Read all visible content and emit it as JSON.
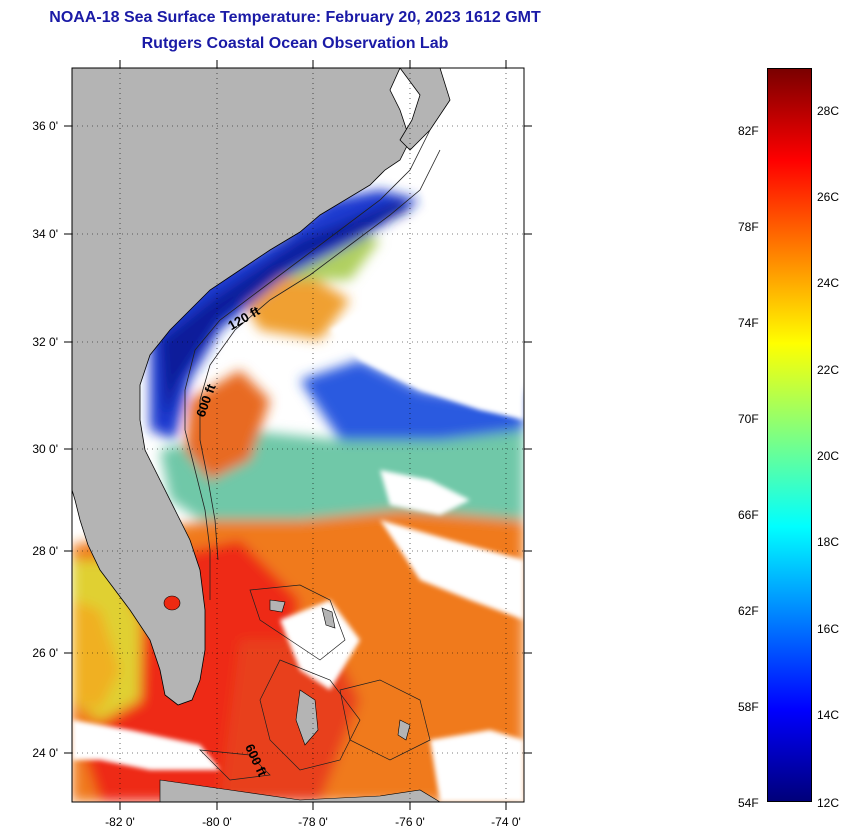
{
  "title": {
    "line1": "NOAA-18 Sea Surface Temperature:  February 20, 2023 1612 GMT",
    "line2": "Rutgers Coastal Ocean Observation Lab"
  },
  "map": {
    "lat_labels": [
      "36 0'",
      "34 0'",
      "32 0'",
      "30 0'",
      "28 0'",
      "26 0'",
      "24 0'"
    ],
    "lon_labels": [
      "-82 0'",
      "-80 0'",
      "-78 0'",
      "-76 0'",
      "-74 0'"
    ],
    "contour_labels": [
      "120 ft",
      "600 ft",
      "600 ft"
    ],
    "colors": {
      "land": "#b4b4b4",
      "cloud": "#ffffff",
      "warm": "#ee2a12",
      "orange": "#f07a1a",
      "yellow": "#e8e030",
      "cyan": "#40c8c8",
      "blue": "#1a3ad0",
      "darkblue": "#0a1a9a"
    }
  },
  "colorbar": {
    "fahrenheit_labels": [
      "82F",
      "78F",
      "74F",
      "70F",
      "66F",
      "62F",
      "58F",
      "54F"
    ],
    "celsius_labels": [
      "28C",
      "26C",
      "24C",
      "22C",
      "20C",
      "18C",
      "16C",
      "14C",
      "12C"
    ],
    "range_c": [
      12,
      29
    ],
    "gradient": [
      "#00007a",
      "#0000ff",
      "#0080ff",
      "#00ffff",
      "#80ff80",
      "#ffff00",
      "#ff8000",
      "#ff0000",
      "#7a0000"
    ]
  }
}
